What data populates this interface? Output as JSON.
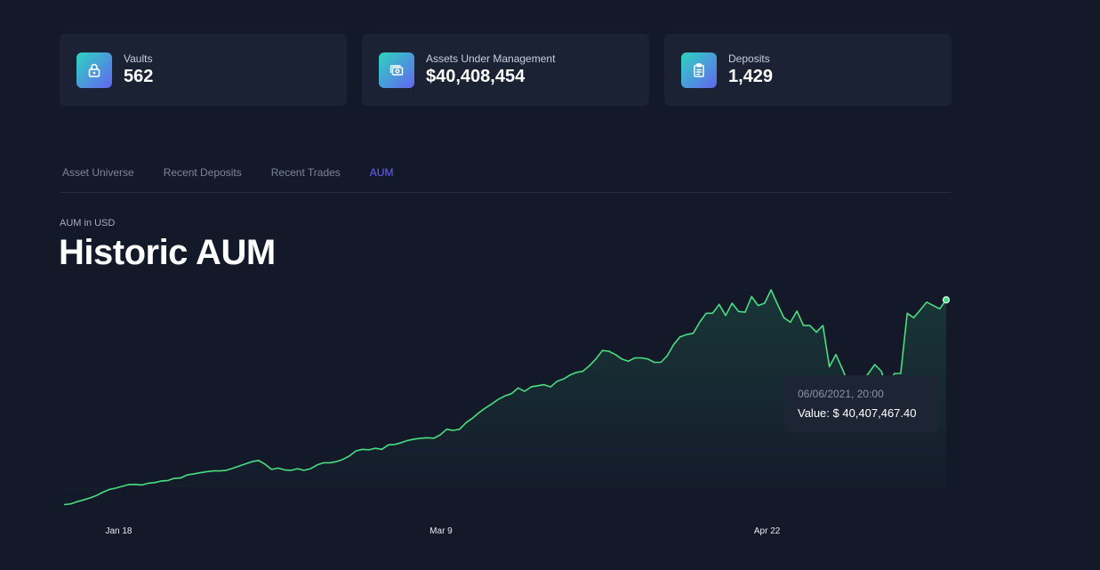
{
  "stats": [
    {
      "label": "Vaults",
      "value": "562",
      "icon": "lock-icon"
    },
    {
      "label": "Assets Under Management",
      "value": "$40,408,454",
      "icon": "money-icon"
    },
    {
      "label": "Deposits",
      "value": "1,429",
      "icon": "clipboard-icon"
    }
  ],
  "tabs": [
    {
      "label": "Asset Universe",
      "active": false
    },
    {
      "label": "Recent Deposits",
      "active": false
    },
    {
      "label": "Recent Trades",
      "active": false
    },
    {
      "label": "AUM",
      "active": true
    }
  ],
  "chart_header": {
    "subtitle": "AUM in USD",
    "title": "Historic AUM"
  },
  "tooltip": {
    "date": "06/06/2021, 20:00",
    "value": "Value: $ 40,407,467.40"
  },
  "colors": {
    "background": "#131929",
    "card": "#1b2233",
    "accent": "#6c63ff",
    "line": "#4ade80"
  },
  "chart_data": {
    "type": "area",
    "x_tick_labels": [
      "Jan 18",
      "Mar 9",
      "Apr 22"
    ],
    "x_tick_index": [
      5,
      55,
      105
    ],
    "values": [
      0.2,
      0.5,
      1.5,
      2.3,
      3.2,
      4.3,
      5.8,
      7.0,
      7.6,
      8.4,
      9.2,
      9.3,
      9.0,
      9.8,
      10.1,
      10.8,
      11.0,
      12.0,
      12.2,
      13.5,
      14.0,
      14.5,
      15.0,
      15.3,
      15.3,
      15.6,
      16.5,
      17.5,
      18.5,
      19.5,
      20.0,
      18.3,
      16.0,
      16.6,
      15.8,
      15.6,
      16.3,
      15.6,
      16.3,
      18.0,
      19.0,
      19.0,
      19.5,
      20.5,
      22.0,
      24.3,
      25.0,
      24.8,
      25.5,
      25.0,
      27.0,
      27.2,
      28.0,
      29.0,
      29.6,
      30.0,
      30.2,
      30.0,
      31.5,
      34.0,
      33.5,
      34.0,
      37.0,
      39.0,
      41.5,
      43.6,
      45.5,
      47.5,
      49.0,
      50.0,
      52.5,
      51.0,
      53.0,
      53.5,
      54.0,
      53.0,
      55.5,
      56.5,
      58.3,
      59.5,
      60.0,
      62.5,
      65.5,
      69.3,
      69.0,
      67.5,
      65.5,
      64.5,
      66.0,
      66.0,
      65.5,
      64.0,
      64.0,
      67.0,
      72.0,
      75.5,
      76.5,
      77.0,
      82.0,
      86.0,
      86.0,
      90.0,
      85.0,
      90.5,
      86.8,
      86.5,
      93.5,
      89.5,
      90.5,
      96.5,
      90.0,
      84.0,
      82.0,
      87.0,
      80.5,
      80.5,
      77.5,
      80.5,
      62.0,
      67.5,
      61.0,
      54.0,
      55.0,
      55.0,
      59.0,
      63.0,
      60.0,
      51.0,
      59.0,
      59.0,
      86.0,
      84.0,
      87.5,
      91.0,
      89.5,
      88.0,
      92.0
    ]
  }
}
